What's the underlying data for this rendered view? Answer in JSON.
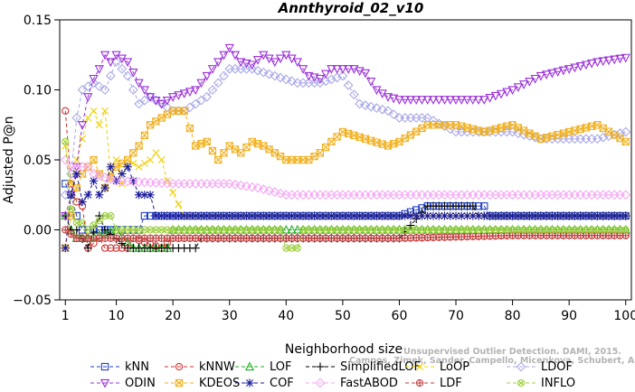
{
  "chart_data": {
    "type": "line",
    "title": "Annthyroid_02_v10",
    "xlabel": "Neighborhood size",
    "ylabel": "Adjusted P@n",
    "xlim": [
      0,
      101
    ],
    "ylim": [
      -0.05,
      0.15
    ],
    "xticks": [
      1,
      10,
      20,
      30,
      40,
      50,
      60,
      70,
      80,
      90,
      100
    ],
    "yticks": [
      -0.05,
      0.0,
      0.05,
      0.1,
      0.15
    ],
    "ytick_labels": [
      "−0.05",
      "0.00",
      "0.05",
      "0.10",
      "0.15"
    ],
    "grid": false,
    "legend_position": "bottom",
    "watermark": [
      "Unsupervised Outlier Detection. DAMI, 2015.",
      "Campos, Zimek, Sander, Campello, Micenkova, Schubert, Assent, Houle"
    ],
    "series": [
      {
        "name": "kNN",
        "color": "#1f3fbf",
        "marker": "square",
        "points": [
          [
            1,
            0.033
          ],
          [
            2,
            0.025
          ],
          [
            3,
            0.01
          ],
          [
            4,
            0.0
          ],
          [
            5,
            0.0
          ],
          [
            6,
            0.0
          ],
          [
            7,
            0.0
          ],
          [
            8,
            0.0
          ],
          [
            9,
            0.0
          ],
          [
            10,
            0.0
          ],
          [
            14,
            0.0
          ],
          [
            15,
            0.01
          ],
          [
            40,
            0.01
          ],
          [
            60,
            0.01
          ],
          [
            65,
            0.017
          ],
          [
            75,
            0.017
          ],
          [
            76,
            0.01
          ],
          [
            100,
            0.01
          ]
        ]
      },
      {
        "name": "kNNW",
        "color": "#d03030",
        "marker": "circle",
        "points": [
          [
            1,
            0.085
          ],
          [
            2,
            0.033
          ],
          [
            3,
            0.02
          ],
          [
            4,
            0.017
          ],
          [
            5,
            -0.013
          ],
          [
            7,
            -0.006
          ],
          [
            8,
            -0.013
          ],
          [
            12,
            -0.013
          ],
          [
            13,
            -0.006
          ],
          [
            18,
            -0.013
          ],
          [
            20,
            -0.006
          ],
          [
            40,
            -0.006
          ],
          [
            60,
            -0.006
          ],
          [
            80,
            -0.004
          ],
          [
            100,
            -0.004
          ]
        ]
      },
      {
        "name": "LOF",
        "color": "#22b022",
        "marker": "triangle-up",
        "points": [
          [
            1,
            0.01
          ],
          [
            2,
            0.0
          ],
          [
            3,
            -0.006
          ],
          [
            5,
            -0.006
          ],
          [
            10,
            0.0
          ],
          [
            13,
            -0.013
          ],
          [
            19,
            -0.013
          ],
          [
            20,
            0.0
          ],
          [
            100,
            0.0
          ]
        ]
      },
      {
        "name": "SimplifiedLOF",
        "color": "#000000",
        "marker": "plus",
        "points": [
          [
            1,
            0.01
          ],
          [
            2,
            0.0
          ],
          [
            3,
            0.0
          ],
          [
            5,
            -0.013
          ],
          [
            7,
            0.01
          ],
          [
            8,
            0.0
          ],
          [
            12,
            -0.013
          ],
          [
            18,
            -0.013
          ],
          [
            20,
            -0.013
          ],
          [
            24,
            -0.013
          ],
          [
            25,
            -0.006
          ],
          [
            60,
            -0.006
          ],
          [
            65,
            0.017
          ],
          [
            73,
            0.017
          ],
          [
            74,
            0.01
          ],
          [
            100,
            0.01
          ]
        ]
      },
      {
        "name": "LoOP",
        "color": "#f0d000",
        "marker": "x",
        "points": [
          [
            1,
            0.06
          ],
          [
            2,
            0.033
          ],
          [
            3,
            0.05
          ],
          [
            4,
            0.065
          ],
          [
            5,
            0.08
          ],
          [
            6,
            0.085
          ],
          [
            7,
            0.075
          ],
          [
            8,
            0.085
          ],
          [
            9,
            0.04
          ],
          [
            10,
            0.05
          ],
          [
            11,
            0.033
          ],
          [
            12,
            0.05
          ],
          [
            14,
            0.045
          ],
          [
            16,
            0.05
          ],
          [
            17,
            0.055
          ],
          [
            18,
            0.05
          ],
          [
            19,
            0.035
          ],
          [
            22,
            0.01
          ],
          [
            100,
            0.01
          ]
        ]
      },
      {
        "name": "LDOF",
        "color": "#a8a8e8",
        "marker": "diamond",
        "points": [
          [
            1,
            0.025
          ],
          [
            2,
            0.04
          ],
          [
            3,
            0.08
          ],
          [
            4,
            0.1
          ],
          [
            6,
            0.105
          ],
          [
            8,
            0.1
          ],
          [
            10,
            0.12
          ],
          [
            12,
            0.11
          ],
          [
            14,
            0.09
          ],
          [
            16,
            0.095
          ],
          [
            18,
            0.09
          ],
          [
            20,
            0.085
          ],
          [
            22,
            0.085
          ],
          [
            26,
            0.095
          ],
          [
            30,
            0.115
          ],
          [
            34,
            0.115
          ],
          [
            38,
            0.11
          ],
          [
            42,
            0.105
          ],
          [
            46,
            0.105
          ],
          [
            50,
            0.11
          ],
          [
            53,
            0.09
          ],
          [
            58,
            0.085
          ],
          [
            60,
            0.08
          ],
          [
            65,
            0.08
          ],
          [
            70,
            0.07
          ],
          [
            75,
            0.07
          ],
          [
            80,
            0.07
          ],
          [
            85,
            0.065
          ],
          [
            90,
            0.065
          ],
          [
            95,
            0.065
          ],
          [
            100,
            0.07
          ]
        ]
      },
      {
        "name": "ODIN",
        "color": "#9a30d8",
        "marker": "triangle-down",
        "points": [
          [
            1,
            0.01
          ],
          [
            2,
            0.025
          ],
          [
            3,
            0.045
          ],
          [
            4,
            0.075
          ],
          [
            5,
            0.095
          ],
          [
            6,
            0.108
          ],
          [
            7,
            0.115
          ],
          [
            8,
            0.125
          ],
          [
            9,
            0.12
          ],
          [
            10,
            0.125
          ],
          [
            12,
            0.12
          ],
          [
            14,
            0.105
          ],
          [
            16,
            0.095
          ],
          [
            18,
            0.09
          ],
          [
            20,
            0.095
          ],
          [
            24,
            0.1
          ],
          [
            28,
            0.12
          ],
          [
            30,
            0.13
          ],
          [
            32,
            0.12
          ],
          [
            34,
            0.118
          ],
          [
            36,
            0.125
          ],
          [
            38,
            0.12
          ],
          [
            40,
            0.125
          ],
          [
            42,
            0.12
          ],
          [
            44,
            0.11
          ],
          [
            46,
            0.108
          ],
          [
            48,
            0.115
          ],
          [
            50,
            0.115
          ],
          [
            52,
            0.115
          ],
          [
            54,
            0.112
          ],
          [
            56,
            0.1
          ],
          [
            58,
            0.095
          ],
          [
            60,
            0.093
          ],
          [
            70,
            0.093
          ],
          [
            75,
            0.093
          ],
          [
            80,
            0.1
          ],
          [
            85,
            0.11
          ],
          [
            90,
            0.115
          ],
          [
            95,
            0.12
          ],
          [
            100,
            0.123
          ]
        ]
      },
      {
        "name": "KDEOS",
        "color": "#f0b020",
        "marker": "square-x",
        "points": [
          [
            1,
            -0.013
          ],
          [
            2,
            0.01
          ],
          [
            3,
            0.03
          ],
          [
            4,
            0.04
          ],
          [
            5,
            0.045
          ],
          [
            6,
            0.05
          ],
          [
            8,
            0.03
          ],
          [
            10,
            0.045
          ],
          [
            12,
            0.05
          ],
          [
            14,
            0.06
          ],
          [
            16,
            0.075
          ],
          [
            18,
            0.08
          ],
          [
            20,
            0.085
          ],
          [
            22,
            0.085
          ],
          [
            24,
            0.06
          ],
          [
            26,
            0.063
          ],
          [
            28,
            0.05
          ],
          [
            30,
            0.06
          ],
          [
            32,
            0.055
          ],
          [
            34,
            0.063
          ],
          [
            36,
            0.06
          ],
          [
            38,
            0.055
          ],
          [
            40,
            0.05
          ],
          [
            42,
            0.05
          ],
          [
            44,
            0.05
          ],
          [
            46,
            0.055
          ],
          [
            48,
            0.063
          ],
          [
            50,
            0.07
          ],
          [
            54,
            0.065
          ],
          [
            58,
            0.06
          ],
          [
            60,
            0.063
          ],
          [
            65,
            0.075
          ],
          [
            70,
            0.075
          ],
          [
            75,
            0.07
          ],
          [
            80,
            0.075
          ],
          [
            85,
            0.065
          ],
          [
            90,
            0.07
          ],
          [
            95,
            0.075
          ],
          [
            100,
            0.063
          ]
        ]
      },
      {
        "name": "COF",
        "color": "#1a1a9a",
        "marker": "asterisk",
        "points": [
          [
            1,
            -0.013
          ],
          [
            2,
            0.025
          ],
          [
            3,
            0.04
          ],
          [
            4,
            0.02
          ],
          [
            5,
            0.025
          ],
          [
            6,
            0.035
          ],
          [
            7,
            0.025
          ],
          [
            8,
            0.03
          ],
          [
            9,
            0.045
          ],
          [
            10,
            0.035
          ],
          [
            11,
            0.04
          ],
          [
            12,
            0.045
          ],
          [
            14,
            0.025
          ],
          [
            16,
            0.025
          ],
          [
            17,
            0.01
          ],
          [
            18,
            0.01
          ],
          [
            100,
            0.01
          ]
        ]
      },
      {
        "name": "FastABOD",
        "color": "#f4a6f4",
        "marker": "diamond",
        "points": [
          [
            1,
            0.05
          ],
          [
            2,
            0.045
          ],
          [
            5,
            0.045
          ],
          [
            6,
            0.04
          ],
          [
            10,
            0.035
          ],
          [
            20,
            0.033
          ],
          [
            30,
            0.033
          ],
          [
            35,
            0.03
          ],
          [
            40,
            0.025
          ],
          [
            60,
            0.025
          ],
          [
            80,
            0.025
          ],
          [
            100,
            0.025
          ]
        ]
      },
      {
        "name": "LDF",
        "color": "#c04040",
        "marker": "circle-plus",
        "points": [
          [
            1,
            0.0
          ],
          [
            3,
            -0.006
          ],
          [
            5,
            -0.006
          ],
          [
            10,
            -0.006
          ],
          [
            20,
            -0.006
          ],
          [
            40,
            -0.006
          ],
          [
            60,
            -0.006
          ],
          [
            80,
            -0.004
          ],
          [
            100,
            -0.004
          ]
        ]
      },
      {
        "name": "INFLO",
        "color": "#a0d040",
        "marker": "circle-x",
        "points": [
          [
            1,
            0.063
          ],
          [
            2,
            0.015
          ],
          [
            3,
            0.005
          ],
          [
            4,
            0.005
          ],
          [
            5,
            0.0
          ],
          [
            8,
            0.01
          ],
          [
            9,
            0.01
          ],
          [
            10,
            0.0
          ],
          [
            20,
            0.0
          ],
          [
            39,
            0.0
          ],
          [
            40,
            -0.013
          ],
          [
            42,
            -0.013
          ],
          [
            43,
            0.0
          ],
          [
            60,
            0.0
          ],
          [
            100,
            0.0
          ]
        ]
      }
    ]
  }
}
